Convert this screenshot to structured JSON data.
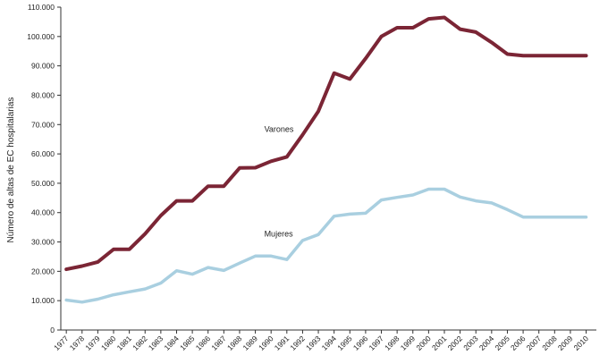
{
  "chart_data": {
    "type": "line",
    "title": "",
    "xlabel": "",
    "ylabel": "Número de altas de EC hospitalarias",
    "ylim": [
      0,
      110000
    ],
    "y_ticks": [
      "0",
      "10.000",
      "20.000",
      "30.000",
      "40.000",
      "50.000",
      "60.000",
      "70.000",
      "80.000",
      "90.000",
      "100.000",
      "110.000"
    ],
    "categories": [
      "1977",
      "1978",
      "1979",
      "1980",
      "1981",
      "1982",
      "1983",
      "1984",
      "1985",
      "1986",
      "1987",
      "1988",
      "1989",
      "1990",
      "1991",
      "1992",
      "1993",
      "1994",
      "1995",
      "1996",
      "1997",
      "1998",
      "1999",
      "2000",
      "2001",
      "2002",
      "2003",
      "2004",
      "2005",
      "2006",
      "2007",
      "2008",
      "2009",
      "2010"
    ],
    "grid": false,
    "legend": "none",
    "series": [
      {
        "name": "Varones",
        "color": "#7b2535",
        "values": [
          20700,
          21800,
          23200,
          27500,
          27500,
          32800,
          39000,
          44000,
          44000,
          49000,
          49000,
          55200,
          55300,
          57500,
          59000,
          66500,
          74500,
          87500,
          85500,
          92500,
          100000,
          103000,
          103000,
          106000,
          106500,
          102500,
          101500,
          98000,
          94000,
          93500,
          93500,
          93500,
          93500,
          93500
        ]
      },
      {
        "name": "Mujeres",
        "color": "#a9cfe0",
        "values": [
          10200,
          9500,
          10500,
          12000,
          13000,
          14000,
          16000,
          20200,
          19000,
          21300,
          20300,
          22800,
          25200,
          25200,
          24000,
          30500,
          32500,
          38800,
          39500,
          39800,
          44300,
          45200,
          46000,
          48000,
          48000,
          45300,
          44000,
          43300,
          41000,
          38500,
          38500,
          38500,
          38500,
          38500
        ]
      }
    ]
  }
}
